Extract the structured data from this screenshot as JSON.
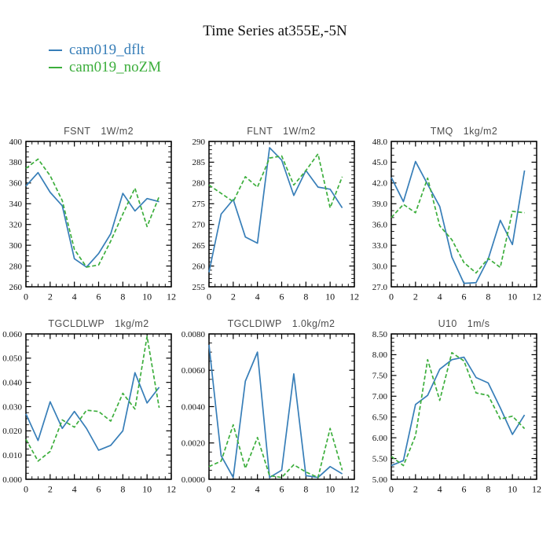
{
  "header": {
    "title": "Time Series at355E,-5N"
  },
  "legend": {
    "items": [
      {
        "label": "cam019_dflt",
        "color": "#377eb8"
      },
      {
        "label": "cam019_noZM",
        "color": "#3cae3c"
      }
    ]
  },
  "chart_data": [
    {
      "type": "line",
      "name": "FSNT",
      "unit": "1W/m2",
      "x": [
        0,
        1,
        2,
        3,
        4,
        5,
        6,
        7,
        8,
        9,
        10,
        11
      ],
      "xlim": [
        0,
        12
      ],
      "xtick_step": 2,
      "xminor_step": 0.5,
      "ylim": [
        260,
        400
      ],
      "ytick_step": 20,
      "yminor_step": 5,
      "ydecimals": 0,
      "grid": false,
      "legend_position": "top-left-of-page",
      "series": [
        {
          "name": "cam019_dflt",
          "color": "#377eb8",
          "style": "solid",
          "values": [
            357,
            370,
            351,
            338,
            287,
            279,
            292,
            311,
            350,
            333,
            345,
            342
          ]
        },
        {
          "name": "cam019_noZM",
          "color": "#3cae3c",
          "style": "dashed",
          "values": [
            374,
            383,
            367,
            343,
            296,
            279,
            281,
            304,
            330,
            355,
            318,
            347
          ]
        }
      ]
    },
    {
      "type": "line",
      "name": "FLNT",
      "unit": "1W/m2",
      "x": [
        0,
        1,
        2,
        3,
        4,
        5,
        6,
        7,
        8,
        9,
        10,
        11
      ],
      "xlim": [
        0,
        12
      ],
      "xtick_step": 2,
      "xminor_step": 0.5,
      "ylim": [
        255,
        290
      ],
      "ytick_step": 5,
      "yminor_step": 1,
      "ydecimals": 0,
      "grid": false,
      "series": [
        {
          "name": "cam019_dflt",
          "color": "#377eb8",
          "style": "solid",
          "values": [
            258.5,
            272.5,
            276,
            267,
            265.5,
            288.5,
            285.5,
            277,
            283,
            279,
            278.5,
            274
          ]
        },
        {
          "name": "cam019_noZM",
          "color": "#3cae3c",
          "style": "dashed",
          "values": [
            279.5,
            277.5,
            275.5,
            281.5,
            279,
            286,
            286.5,
            279.5,
            283,
            287,
            274,
            281.5
          ]
        }
      ]
    },
    {
      "type": "line",
      "name": "TMQ",
      "unit": "1kg/m2",
      "x": [
        0,
        1,
        2,
        3,
        4,
        5,
        6,
        7,
        8,
        9,
        10,
        11
      ],
      "xlim": [
        0,
        12
      ],
      "xtick_step": 2,
      "xminor_step": 0.5,
      "ylim": [
        27,
        48
      ],
      "ytick_step": 3,
      "yminor_step": 1,
      "ydecimals": 1,
      "grid": false,
      "series": [
        {
          "name": "cam019_dflt",
          "color": "#377eb8",
          "style": "solid",
          "values": [
            42.8,
            39.3,
            45.1,
            41.8,
            38.6,
            31.3,
            27.5,
            27.6,
            31,
            36.6,
            33.1,
            43.8
          ]
        },
        {
          "name": "cam019_noZM",
          "color": "#3cae3c",
          "style": "dashed",
          "values": [
            37,
            38.9,
            37.7,
            42.7,
            35.8,
            33.8,
            30.5,
            29,
            31.1,
            29.8,
            37.9,
            37.7
          ]
        }
      ]
    },
    {
      "type": "line",
      "name": "TGCLDLWP",
      "unit": "1kg/m2",
      "x": [
        0,
        1,
        2,
        3,
        4,
        5,
        6,
        7,
        8,
        9,
        10,
        11
      ],
      "xlim": [
        0,
        12
      ],
      "xtick_step": 2,
      "xminor_step": 0.5,
      "ylim": [
        0,
        0.06
      ],
      "ytick_step": 0.01,
      "yminor_step": 0.0025,
      "ydecimals": 3,
      "grid": false,
      "series": [
        {
          "name": "cam019_dflt",
          "color": "#377eb8",
          "style": "solid",
          "values": [
            0.027,
            0.016,
            0.032,
            0.021,
            0.028,
            0.021,
            0.012,
            0.014,
            0.02,
            0.044,
            0.0315,
            0.038
          ]
        },
        {
          "name": "cam019_noZM",
          "color": "#3cae3c",
          "style": "dashed",
          "values": [
            0.0165,
            0.0075,
            0.0115,
            0.0245,
            0.0215,
            0.0285,
            0.028,
            0.024,
            0.0355,
            0.029,
            0.059,
            0.0295
          ]
        }
      ]
    },
    {
      "type": "line",
      "name": "TGCLDIWP",
      "unit": "1.0kg/m2",
      "x": [
        0,
        1,
        2,
        3,
        4,
        5,
        6,
        7,
        8,
        9,
        10,
        11
      ],
      "xlim": [
        0,
        12
      ],
      "xtick_step": 2,
      "xminor_step": 0.5,
      "ylim": [
        0,
        0.008
      ],
      "ytick_step": 0.002,
      "yminor_step": 0.0005,
      "ydecimals": 4,
      "grid": false,
      "series": [
        {
          "name": "cam019_dflt",
          "color": "#377eb8",
          "style": "solid",
          "values": [
            0.0074,
            0.0013,
            0.0001,
            0.0054,
            0.007,
            0.0001,
            0.0005,
            0.0058,
            0.0002,
            0.0001,
            0.0007,
            0.0003
          ]
        },
        {
          "name": "cam019_noZM",
          "color": "#3cae3c",
          "style": "dashed",
          "values": [
            0.0007,
            0.001,
            0.003,
            0.0006,
            0.0023,
            0.0002,
            0.0001,
            0.0008,
            0.0004,
            0.0001,
            0.0028,
            0.0005
          ]
        }
      ]
    },
    {
      "type": "line",
      "name": "U10",
      "unit": "1m/s",
      "x": [
        0,
        1,
        2,
        3,
        4,
        5,
        6,
        7,
        8,
        9,
        10,
        11
      ],
      "xlim": [
        0,
        12
      ],
      "xtick_step": 2,
      "xminor_step": 0.5,
      "ylim": [
        5,
        8.5
      ],
      "ytick_step": 0.5,
      "yminor_step": 0.1,
      "ydecimals": 2,
      "grid": false,
      "series": [
        {
          "name": "cam019_dflt",
          "color": "#377eb8",
          "style": "solid",
          "values": [
            5.33,
            5.45,
            6.8,
            7.02,
            7.65,
            7.88,
            7.94,
            7.45,
            7.32,
            6.72,
            6.08,
            6.55
          ]
        },
        {
          "name": "cam019_noZM",
          "color": "#3cae3c",
          "style": "dashed",
          "values": [
            5.55,
            5.33,
            6.05,
            7.88,
            6.9,
            8.05,
            7.85,
            7.08,
            7.02,
            6.45,
            6.52,
            6.22
          ]
        }
      ]
    }
  ]
}
